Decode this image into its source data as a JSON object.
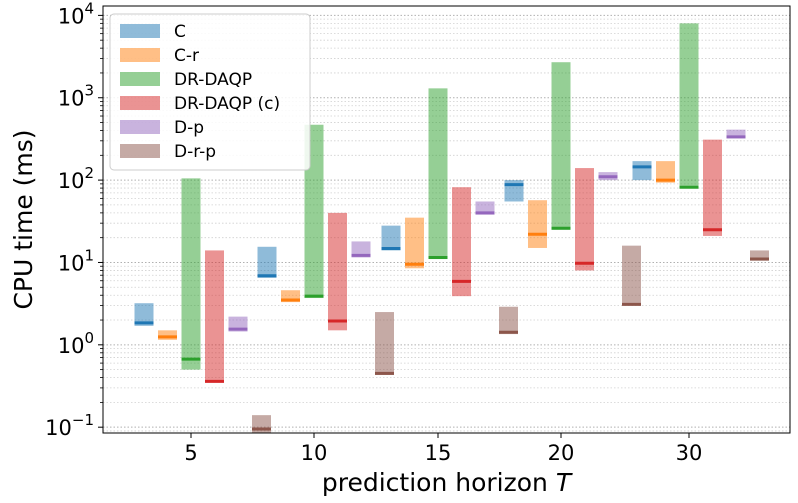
{
  "chart_data": {
    "type": "bar",
    "subtype": "floating-range-bars-with-median",
    "xlabel": "prediction horizon",
    "xlabel_var": "T",
    "ylabel": "CPU time (ms)",
    "yscale": "log",
    "ylim": [
      0.085,
      13000
    ],
    "yticks": [
      {
        "value": 0.1,
        "base": "10",
        "exp": "−1"
      },
      {
        "value": 1,
        "base": "10",
        "exp": "0"
      },
      {
        "value": 10,
        "base": "10",
        "exp": "1"
      },
      {
        "value": 100,
        "base": "10",
        "exp": "2"
      },
      {
        "value": 1000,
        "base": "10",
        "exp": "3"
      },
      {
        "value": 10000,
        "base": "10",
        "exp": "4"
      }
    ],
    "grid": "horizontal major and minor, dotted",
    "legend_position": "top-left",
    "categories": [
      "5",
      "10",
      "15",
      "20",
      "30"
    ],
    "series": [
      {
        "name": "C",
        "color": "#1f77b4",
        "median_color": "#1f77b4",
        "ranges": [
          [
            1.7,
            3.2
          ],
          [
            6.5,
            15.5
          ],
          [
            14,
            28
          ],
          [
            55,
            100
          ],
          [
            100,
            170
          ]
        ],
        "medians": [
          1.85,
          6.9,
          14.8,
          88,
          145
        ]
      },
      {
        "name": "C-r",
        "color": "#ff7f0e",
        "median_color": "#ff7f0e",
        "ranges": [
          [
            1.15,
            1.5
          ],
          [
            3.3,
            4.6
          ],
          [
            8.5,
            35
          ],
          [
            15,
            57
          ],
          [
            93,
            170
          ]
        ],
        "medians": [
          1.25,
          3.5,
          9.5,
          22,
          100
        ]
      },
      {
        "name": "DR-DAQP",
        "color": "#2ca02c",
        "median_color": "#2ca02c",
        "ranges": [
          [
            0.5,
            105
          ],
          [
            3.7,
            470
          ],
          [
            11,
            1300
          ],
          [
            25,
            2700
          ],
          [
            80,
            8000
          ]
        ],
        "medians": [
          0.67,
          3.9,
          11.5,
          26,
          82
        ]
      },
      {
        "name": "DR-DAQP (c)",
        "color": "#d62728",
        "median_color": "#d62728",
        "ranges": [
          [
            0.35,
            14
          ],
          [
            1.5,
            40
          ],
          [
            3.9,
            82
          ],
          [
            8,
            140
          ],
          [
            21,
            310
          ]
        ],
        "medians": [
          0.36,
          1.95,
          5.9,
          9.8,
          25
        ]
      },
      {
        "name": "D-p",
        "color": "#9467bd",
        "median_color": "#9467bd",
        "ranges": [
          [
            1.45,
            2.2
          ],
          [
            11.5,
            18
          ],
          [
            38,
            55
          ],
          [
            100,
            125
          ],
          [
            320,
            410
          ]
        ],
        "medians": [
          1.55,
          12.2,
          40,
          110,
          335
        ]
      },
      {
        "name": "D-r-p",
        "color": "#8c564b",
        "median_color": "#8c564b",
        "ranges": [
          [
            0.085,
            0.14
          ],
          [
            0.43,
            2.5
          ],
          [
            1.35,
            2.9
          ],
          [
            3.0,
            16
          ],
          [
            10.5,
            14
          ]
        ],
        "medians": [
          0.095,
          0.45,
          1.42,
          3.1,
          11
        ]
      }
    ]
  }
}
